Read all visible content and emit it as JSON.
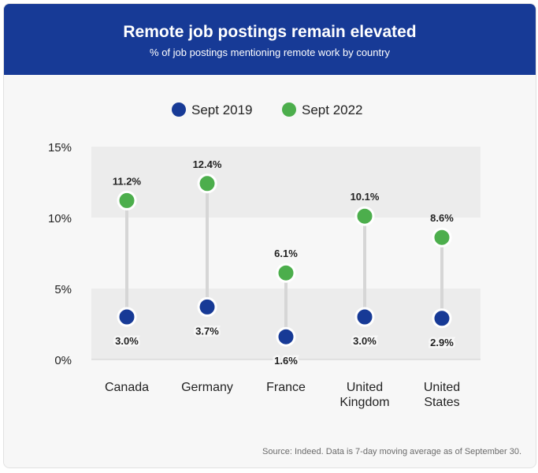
{
  "header": {
    "title": "Remote job postings remain elevated",
    "subtitle": "% of job postings mentioning remote work by country"
  },
  "source": "Source: Indeed. Data is 7-day moving average as of September 30.",
  "colors": {
    "header_bg": "#173a96",
    "sept2019": "#173a96",
    "sept2022": "#4cae4c",
    "connector": "#d6d6d6",
    "band": "#ececec"
  },
  "chart_data": {
    "type": "dumbbell",
    "categories": [
      [
        "Canada"
      ],
      [
        "Germany"
      ],
      [
        "France"
      ],
      [
        "United",
        "Kingdom"
      ],
      [
        "United",
        "States"
      ]
    ],
    "series": [
      {
        "name": "Sept 2019",
        "values": [
          3.0,
          3.7,
          1.6,
          3.0,
          2.9
        ],
        "labels": [
          "3.0%",
          "3.7%",
          "1.6%",
          "3.0%",
          "2.9%"
        ]
      },
      {
        "name": "Sept 2022",
        "values": [
          11.2,
          12.4,
          6.1,
          10.1,
          8.6
        ],
        "labels": [
          "11.2%",
          "12.4%",
          "6.1%",
          "10.1%",
          "8.6%"
        ]
      }
    ],
    "ylim": [
      0,
      15
    ],
    "yticks": [
      0,
      5,
      10,
      15
    ],
    "ytick_labels": [
      "0%",
      "5%",
      "10%",
      "15%"
    ],
    "legend": "top-center",
    "grid": "alternating horizontal bands"
  }
}
